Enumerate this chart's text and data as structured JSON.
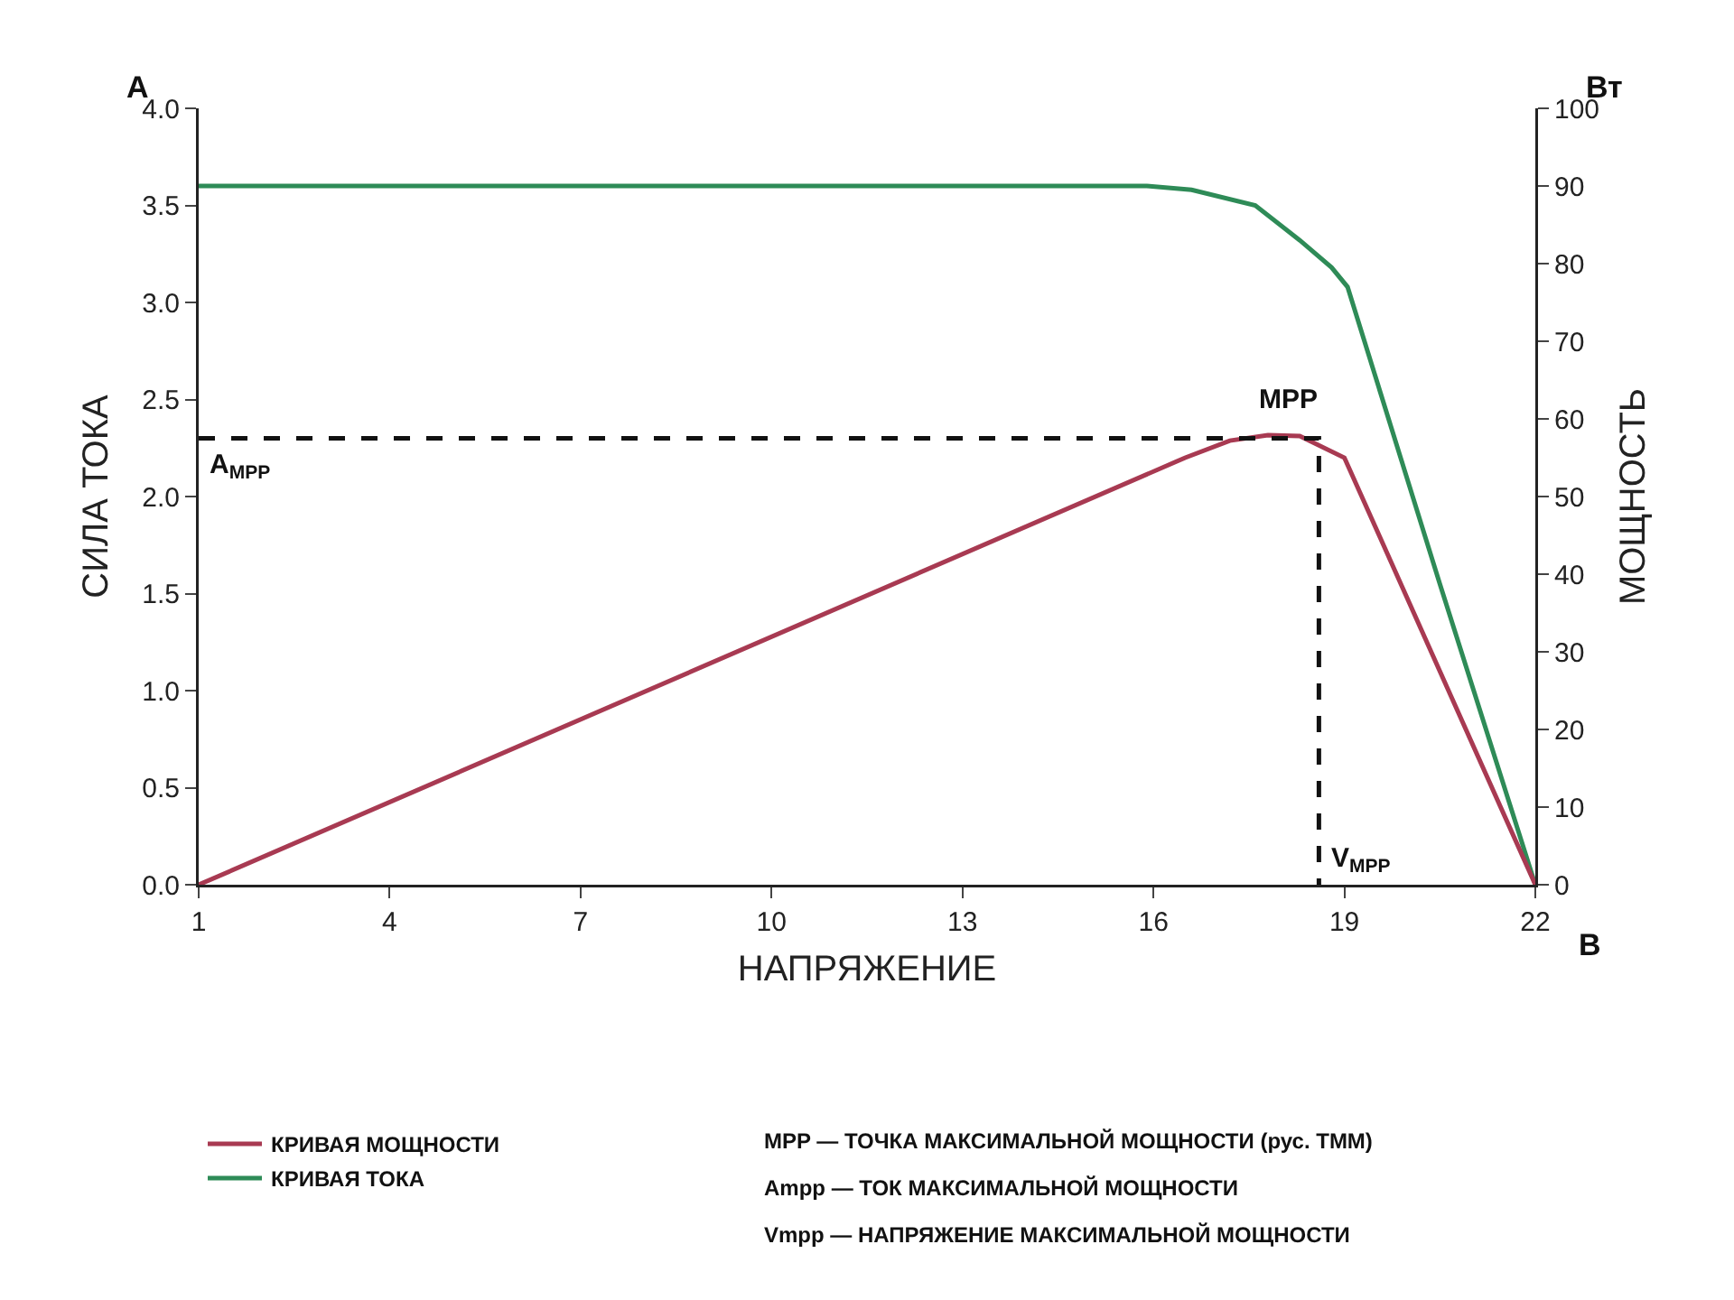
{
  "chart_data": {
    "type": "line",
    "xlabel": "НАПРЯЖЕНИЕ",
    "ylabel": "СИЛА ТОКА",
    "y2label": "МОЩНОСТЬ",
    "xlim": [
      1,
      22
    ],
    "xticks": [
      1,
      4,
      7,
      10,
      13,
      16,
      19,
      22
    ],
    "ylim": [
      0,
      4
    ],
    "yticks": [
      {
        "value": 0,
        "label": "0.0"
      },
      {
        "value": 0.5,
        "label": "0.5"
      },
      {
        "value": 1,
        "label": "1.0"
      },
      {
        "value": 1.5,
        "label": "1.5"
      },
      {
        "value": 2,
        "label": "2.0"
      },
      {
        "value": 2.5,
        "label": "2.5"
      },
      {
        "value": 3,
        "label": "3.0"
      },
      {
        "value": 3.5,
        "label": "3.5"
      },
      {
        "value": 4,
        "label": "4.0"
      }
    ],
    "y2lim": [
      0,
      100
    ],
    "y2ticks": [
      0,
      10,
      20,
      30,
      40,
      50,
      60,
      70,
      80,
      90,
      100
    ],
    "grid": false,
    "legend": "bottom left",
    "marker": "none",
    "line_style": "solid",
    "series": [
      {
        "name": "КРИВАЯ МОЩНОСТИ",
        "color": "#a83a52",
        "axis": "y2",
        "x": [
          1,
          16.5,
          17.2,
          17.8,
          18.3,
          19,
          22
        ],
        "values": [
          0,
          55,
          57.2,
          57.9,
          57.8,
          55,
          0
        ]
      },
      {
        "name": "КРИВАЯ ТОКА",
        "color": "#2e8b57",
        "x": [
          1,
          15.9,
          16.6,
          17.6,
          18.3,
          18.8,
          19.05,
          20.5,
          22
        ],
        "values": [
          3.6,
          3.6,
          3.58,
          3.5,
          3.32,
          3.18,
          3.08,
          1.55,
          0
        ]
      },
      {
        "color": "#111111",
        "axis": "y2",
        "line_style": "dashed",
        "x": [
          1,
          18.6,
          18.6
        ],
        "values": [
          57.5,
          57.5,
          0
        ]
      }
    ],
    "annotations": [
      "MPP",
      "A$_{MPP}$",
      "V$_{MPP}$",
      "А",
      "Вт",
      "В",
      "MPP — ТОЧКА МАКСИМАЛЬНОЙ МОЩНОСТИ (рус. ТММ)",
      "Ampp — ТОК МАКСИМАЛЬНОЙ МОЩНОСТИ",
      "Vmpp — НАПРЯЖЕНИЕ МАКСИМАЛЬНОЙ МОЩНОСТИ"
    ]
  }
}
